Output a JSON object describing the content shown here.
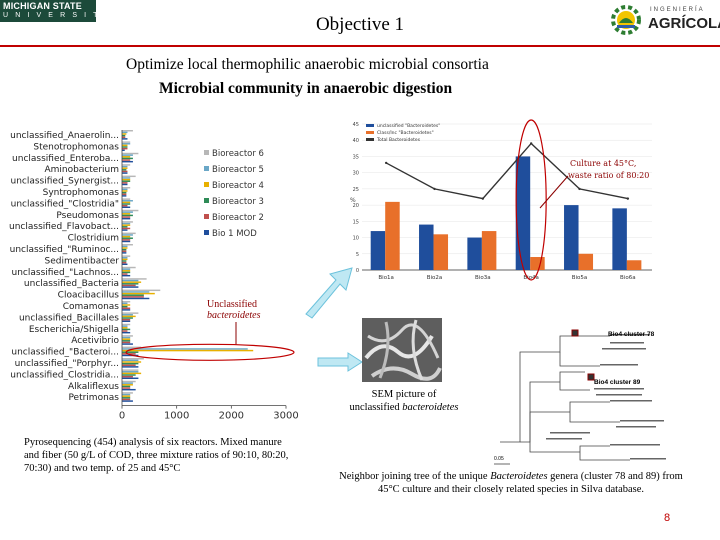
{
  "header": {
    "university_line1": "MICHIGAN STATE",
    "university_line2": "U N I V E R S I T Y",
    "title": "Objective 1",
    "logo_small": "INGENIERÍA",
    "logo_big": "AGRÍCOLA",
    "colors": {
      "rule": "#c00000",
      "msu_green": "#1c4a3a"
    }
  },
  "subtitle1": "Optimize local thermophilic anaerobic microbial consortia",
  "subtitle2": "Microbial community in anaerobic digestion",
  "bar_chart_left": {
    "type": "bar",
    "orientation": "horizontal",
    "categories": [
      "unclassified_Anaerolin...",
      "Stenotrophomonas",
      "unclassified_Enteroba...",
      "Aminobacterium",
      "unclassified_Synergist...",
      "Syntrophomonas",
      "unclassified_\"Clostridia\"",
      "Pseudomonas",
      "unclassified_Flavobact...",
      "Clostridium",
      "unclassified_\"Ruminoc...",
      "Sedimentibacter",
      "unclassified_\"Lachnos...",
      "unclassified_Bacteria",
      "Cloacibacillus",
      "Comamonas",
      "unclassified_Bacillales",
      "Escherichia/Shigella",
      "Acetivibrio",
      "unclassified_\"Bacteroi...",
      "unclassified_\"Porphyr...",
      "unclassified_Clostridia...",
      "Alkaliflexus",
      "Petrimonas"
    ],
    "series": [
      {
        "name": "Bioreactor 6",
        "color": "#b7b7b7",
        "values": [
          200,
          150,
          300,
          150,
          250,
          150,
          150,
          300,
          200,
          250,
          200,
          150,
          250,
          450,
          700,
          150,
          300,
          150,
          200,
          350,
          400,
          300,
          250,
          200
        ]
      },
      {
        "name": "Bioreactor 5",
        "color": "#6aa7c7",
        "values": [
          100,
          150,
          200,
          100,
          150,
          100,
          200,
          200,
          150,
          200,
          100,
          100,
          150,
          300,
          500,
          100,
          200,
          100,
          150,
          2300,
          300,
          300,
          200,
          150
        ]
      },
      {
        "name": "Bioreactor 4",
        "color": "#e8b000",
        "values": [
          80,
          100,
          150,
          100,
          150,
          100,
          150,
          150,
          150,
          150,
          100,
          100,
          150,
          350,
          600,
          150,
          250,
          100,
          150,
          2400,
          350,
          350,
          200,
          150
        ]
      },
      {
        "name": "Bioreactor 3",
        "color": "#2e8b57",
        "values": [
          60,
          100,
          200,
          80,
          150,
          80,
          150,
          200,
          100,
          200,
          80,
          80,
          150,
          300,
          400,
          100,
          200,
          150,
          150,
          300,
          300,
          250,
          150,
          150
        ]
      },
      {
        "name": "Bioreactor 2",
        "color": "#c0504d",
        "values": [
          60,
          100,
          150,
          100,
          100,
          80,
          100,
          150,
          150,
          150,
          80,
          80,
          100,
          250,
          400,
          150,
          150,
          100,
          150,
          250,
          250,
          200,
          150,
          150
        ]
      },
      {
        "name": "Bio 1 MOD",
        "color": "#1f4e9c",
        "values": [
          100,
          50,
          200,
          100,
          100,
          80,
          150,
          150,
          100,
          150,
          80,
          100,
          150,
          300,
          500,
          150,
          150,
          150,
          200,
          300,
          300,
          300,
          250,
          200
        ]
      }
    ],
    "xticks": [
      "0",
      "1000",
      "2000",
      "3000"
    ],
    "xlim": [
      0,
      3000
    ]
  },
  "bar_chart_right": {
    "type": "bar",
    "categories": [
      "Bio1a",
      "Bio2a",
      "Bio3a",
      "Bio4a",
      "Bio5a",
      "Bio6a"
    ],
    "series": [
      {
        "name": "unclassified \"Bacteroidetes\"",
        "color": "#1f4e9c",
        "values": [
          12,
          14,
          10,
          35,
          20,
          19
        ]
      },
      {
        "name": "Class/Inc \"Bacteroidetes\"",
        "color": "#e8702a",
        "values": [
          21,
          11,
          12,
          4,
          5,
          3
        ]
      }
    ],
    "line": {
      "name": "Total Bacteroidetes",
      "color": "#333333",
      "values": [
        33,
        25,
        22,
        39,
        25,
        22
      ]
    },
    "yticks": [
      "0",
      "5",
      "10",
      "15",
      "20",
      "25",
      "30",
      "35",
      "40",
      "45"
    ],
    "ylim": [
      0,
      45
    ],
    "ylabel": "%",
    "annotation_line1": "Culture at 45°C,",
    "annotation_line2": "waste ratio of 80:20"
  },
  "unclassified_label_line1": "Unclassified",
  "unclassified_label_line2": "bacteroidetes",
  "sem_caption_line1": "SEM picture of",
  "sem_caption_prefix": "unclassified ",
  "sem_caption_italic": "bacteroidetes",
  "tree": {
    "cluster78": "Bio4 cluster 78",
    "cluster89": "Bio4 cluster 89",
    "scale": "0.05"
  },
  "left_caption": "Pyrosequencing (454) analysis of six reactors. Mixed manure and fiber (50 g/L of COD, three mixture ratios of 90:10, 80:20, 70:30) and two temp. of 25 and 45°C",
  "right_caption_pre": "Neighbor joining tree of the unique ",
  "right_caption_italic": "Bacteroidetes",
  "right_caption_post": " genera (cluster 78 and 89) from 45°C culture and their closely related species in Silva database.",
  "page_number": "8"
}
